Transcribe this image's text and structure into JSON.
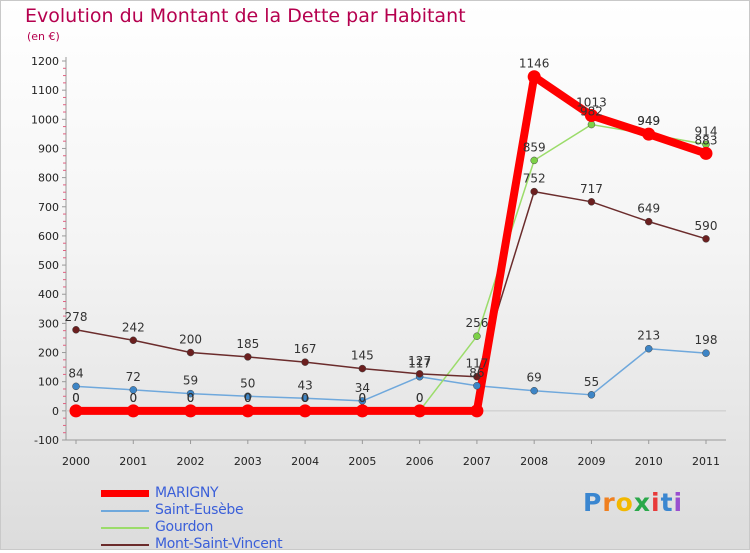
{
  "title": "Evolution du Montant de la Dette par Habitant",
  "unit": "(en €)",
  "brand": {
    "letters": [
      "P",
      "r",
      "o",
      "x",
      "i",
      "t",
      "i"
    ],
    "colors": [
      "#3a86d0",
      "#f08020",
      "#f2b800",
      "#2aa84a",
      "#e83a3a",
      "#3a86d0",
      "#9a4fcf"
    ]
  },
  "chart_data": {
    "type": "line",
    "x": [
      "2000",
      "2001",
      "2002",
      "2003",
      "2004",
      "2005",
      "2006",
      "2007",
      "2008",
      "2009",
      "2010",
      "2011"
    ],
    "y_ticks": [
      -100,
      0,
      100,
      200,
      300,
      400,
      500,
      600,
      700,
      800,
      900,
      1000,
      1100,
      1200
    ],
    "ylim": [
      -100,
      1200
    ],
    "grid": false,
    "legend": "bottom-left",
    "series": [
      {
        "name": "MARIGNY",
        "color": "#ff0000",
        "point_color": "#ff0000",
        "values": [
          0,
          0,
          0,
          0,
          0,
          0,
          0,
          0,
          1146,
          1013,
          949,
          883
        ],
        "labels": [
          "0",
          "0",
          "0",
          "0",
          "0",
          "0",
          "0",
          "",
          "1146",
          "1013",
          "949",
          "883"
        ],
        "emphasis": true
      },
      {
        "name": "Saint-Eusèbe",
        "color": "#6fa8dc",
        "point_color": "#3d85c6",
        "values": [
          84,
          72,
          59,
          50,
          43,
          34,
          117,
          86,
          69,
          55,
          213,
          198
        ],
        "labels": [
          "84",
          "72",
          "59",
          "50",
          "43",
          "34",
          "117",
          "86",
          "69",
          "55",
          "213",
          "198"
        ]
      },
      {
        "name": "Gourdon",
        "color": "#9bdc6a",
        "point_color": "#7cd147",
        "values": [
          0,
          0,
          0,
          0,
          0,
          0,
          0,
          256,
          859,
          982,
          949,
          914
        ],
        "labels": [
          "0",
          "0",
          "0",
          "0",
          "0",
          "0",
          "0",
          "256",
          "859",
          "982",
          "949",
          "914"
        ]
      },
      {
        "name": "Mont-Saint-Vincent",
        "color": "#6b2c2c",
        "point_color": "#6b1f1f",
        "values": [
          278,
          242,
          200,
          185,
          167,
          145,
          127,
          117,
          752,
          717,
          649,
          590
        ],
        "labels": [
          "278",
          "242",
          "200",
          "185",
          "167",
          "145",
          "127",
          "117",
          "752",
          "717",
          "649",
          "590"
        ]
      }
    ]
  }
}
